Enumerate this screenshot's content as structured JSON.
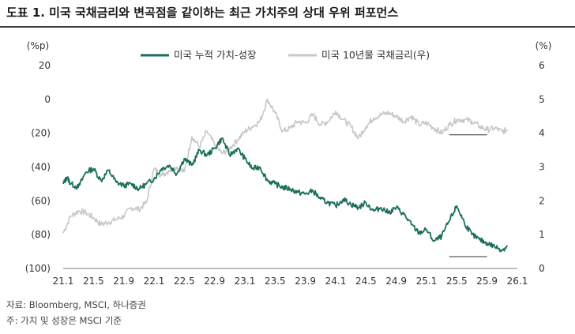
{
  "title": "도표 1. 미국 국채금리와 변곡점을 같이하는 최근 가치주의 상대 우위 퍼포먼스",
  "footer": {
    "source": "자료: Bloomberg, MSCI, 하나증권",
    "note": "주: 가치 및 성장은 MSCI 기준"
  },
  "colors": {
    "series1": "#1b6e5c",
    "series2": "#c8c8c8",
    "axis": "#7f7f7f",
    "text": "#333333"
  },
  "chart_data": {
    "type": "line",
    "left_axis": {
      "unit_label": "(%p)",
      "ylim": [
        -100,
        20
      ],
      "ticks": [
        20,
        0,
        -20,
        -40,
        -60,
        -80,
        -100
      ],
      "tick_labels": [
        "20",
        "0",
        "(20)",
        "(40)",
        "(60)",
        "(80)",
        "(100)"
      ]
    },
    "right_axis": {
      "unit_label": "(%)",
      "ylim": [
        0,
        6
      ],
      "ticks": [
        6,
        5,
        4,
        3,
        2,
        1,
        0
      ],
      "tick_labels": [
        "6",
        "5",
        "4",
        "3",
        "2",
        "1",
        "0"
      ]
    },
    "x_tick_labels": [
      "21.1",
      "21.5",
      "21.9",
      "22.1",
      "22.5",
      "22.9",
      "23.1",
      "23.5",
      "23.9",
      "24.1",
      "24.5",
      "24.9",
      "25.1",
      "25.5",
      "25.9",
      "26.1"
    ],
    "x_range": [
      0,
      60
    ],
    "legend": [
      "미국 누적 가치-성장",
      "미국 10년물 국채금리(우)"
    ],
    "series": [
      {
        "name": "미국 누적 가치-성장",
        "axis": "left",
        "x": [
          0,
          0.5,
          1,
          2,
          3,
          4,
          5,
          6,
          7,
          8,
          9,
          10,
          11,
          12,
          13,
          14,
          15,
          16,
          17,
          18,
          19,
          20,
          21,
          22,
          23,
          24,
          25,
          26,
          27,
          28,
          29,
          30,
          31,
          32,
          33,
          34,
          35,
          36,
          37,
          38,
          39,
          40,
          41,
          42,
          43,
          44,
          45,
          46,
          47,
          48,
          49,
          50,
          51,
          52,
          53,
          54,
          55,
          56,
          57,
          58,
          58.7
        ],
        "values": [
          -50,
          -46,
          -50,
          -52,
          -43,
          -41,
          -48,
          -42,
          -49,
          -51,
          -50,
          -53,
          -50,
          -47,
          -41,
          -39,
          -44,
          -35,
          -39,
          -30,
          -33,
          -29,
          -23,
          -33,
          -29,
          -35,
          -41,
          -40,
          -48,
          -50,
          -52,
          -53,
          -55,
          -56,
          -54,
          -59,
          -61,
          -63,
          -59,
          -62,
          -64,
          -61,
          -66,
          -64,
          -67,
          -64,
          -68,
          -74,
          -79,
          -77,
          -84,
          -81,
          -72,
          -63,
          -73,
          -80,
          -83,
          -85,
          -87,
          -89,
          -87
        ]
      },
      {
        "name": "미국 10년물 국채금리(우)",
        "axis": "right",
        "x": [
          0,
          1,
          2,
          3,
          4,
          5,
          6,
          7,
          8,
          9,
          10,
          11,
          12,
          13,
          14,
          15,
          16,
          17,
          18,
          19,
          20,
          21,
          22,
          23,
          24,
          25,
          26,
          27,
          28,
          29,
          30,
          31,
          32,
          33,
          34,
          35,
          36,
          37,
          38,
          39,
          40,
          41,
          42,
          43,
          44,
          45,
          46,
          47,
          48,
          49,
          50,
          51,
          52,
          53,
          54,
          55,
          56,
          57,
          58,
          58.7
        ],
        "values": [
          1.05,
          1.55,
          1.7,
          1.65,
          1.5,
          1.3,
          1.37,
          1.45,
          1.55,
          1.8,
          1.75,
          1.95,
          2.95,
          2.75,
          2.9,
          3.0,
          2.85,
          3.9,
          3.6,
          4.05,
          3.65,
          3.4,
          3.55,
          3.8,
          4.05,
          4.2,
          4.35,
          5.0,
          4.6,
          4.05,
          4.15,
          4.35,
          4.3,
          4.55,
          4.25,
          4.35,
          4.65,
          4.4,
          4.2,
          3.85,
          4.2,
          4.45,
          4.55,
          4.6,
          4.5,
          4.35,
          4.5,
          4.25,
          4.3,
          4.15,
          4.0,
          4.25,
          4.4,
          4.4,
          4.35,
          4.2,
          4.1,
          4.15,
          4.05,
          4.1
        ]
      }
    ],
    "reference_lines": [
      {
        "axis": "right",
        "value": 3.95,
        "x_start": 51,
        "x_end": 56
      },
      {
        "axis": "left",
        "value": -93,
        "x_start": 51,
        "x_end": 56
      }
    ]
  }
}
